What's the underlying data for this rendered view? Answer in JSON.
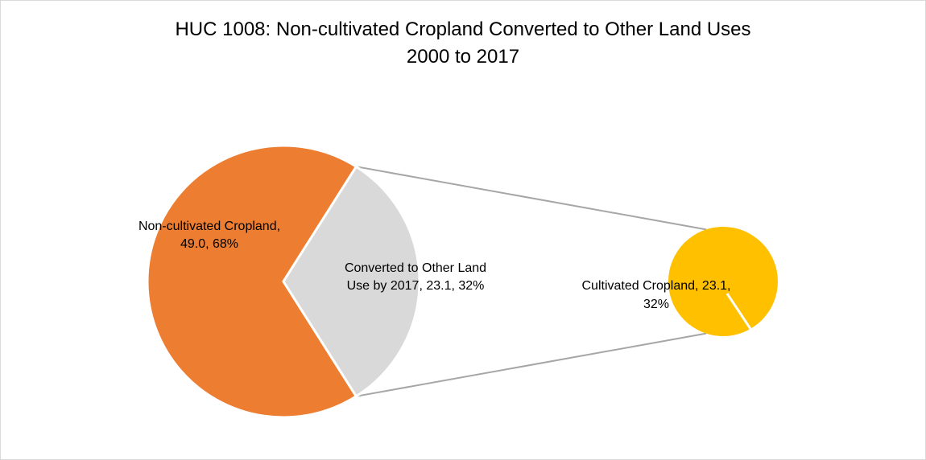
{
  "chart_data": {
    "type": "pie",
    "subtype": "pie-of-pie",
    "title": "HUC 1008: Non-cultivated Cropland Converted to Other Land Uses",
    "subtitle": "2000 to 2017",
    "main_pie": {
      "slices": [
        {
          "name": "Non-cultivated Cropland",
          "value": 49.0,
          "percent": 68,
          "label_lines": [
            "Non-cultivated Cropland,",
            "49.0, 68%"
          ],
          "color": "#ED7D31"
        },
        {
          "name": "Converted to Other Land Use by 2017",
          "value": 23.1,
          "percent": 32,
          "label_lines": [
            "Converted to Other Land",
            "Use by 2017, 23.1, 32%"
          ],
          "color": "#D9D9D9"
        }
      ]
    },
    "secondary_pie": {
      "slices": [
        {
          "name": "Cultivated Cropland",
          "value": 23.1,
          "percent": 32,
          "label_lines": [
            "Cultivated Cropland, 23.1,",
            "32%"
          ],
          "color": "#FFC000"
        }
      ]
    },
    "connector_color": "#A6A6A6",
    "legend": "none"
  }
}
